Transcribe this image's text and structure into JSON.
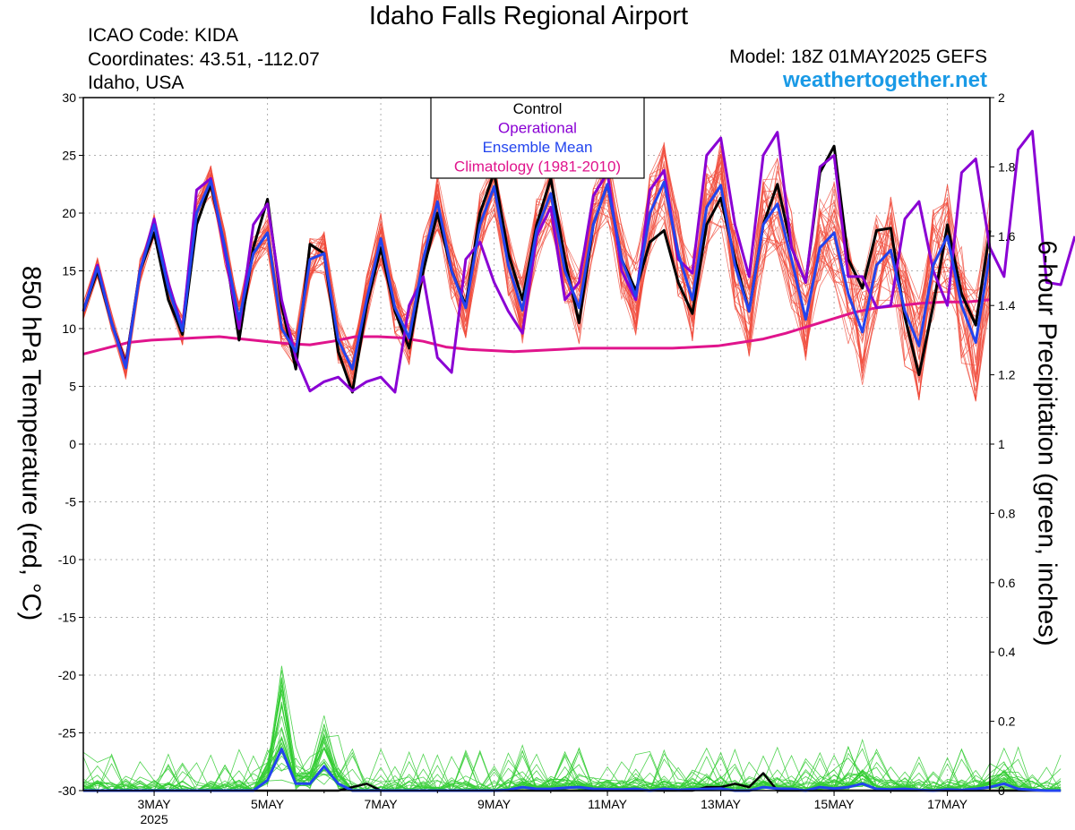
{
  "header": {
    "title": "Idaho Falls Regional Airport",
    "icao": "ICAO Code: KIDA",
    "coords": "Coordinates: 43.51, -112.07",
    "region": "Idaho, USA",
    "model": "Model: 18Z 01MAY2025 GEFS",
    "site": "weathertogether.net"
  },
  "chart_data": {
    "type": "line",
    "ylabel_left": "850 hPa Temperature (red, °C)",
    "ylabel_right": "6-hour Precipitation (green, inches)",
    "ylim_left": [
      -30,
      30
    ],
    "ylim_right": [
      0,
      2
    ],
    "x_range_days": [
      1.75,
      17.75
    ],
    "x_note": "x values are day-of-May 2025 (6-hourly steps)",
    "yticks_left": [
      "30",
      "25",
      "20",
      "15",
      "10",
      "5",
      "0",
      "-5",
      "-10",
      "-15",
      "-20",
      "-25",
      "-30"
    ],
    "yticks_right": [
      "2",
      "1.8",
      "1.6",
      "1.4",
      "1.2",
      "1",
      "0.8",
      "0.6",
      "0.4",
      "0.2",
      "0"
    ],
    "xticks": [
      {
        "day": 3,
        "label": "3MAY"
      },
      {
        "day": 5,
        "label": "5MAY"
      },
      {
        "day": 7,
        "label": "7MAY"
      },
      {
        "day": 9,
        "label": "9MAY"
      },
      {
        "day": 11,
        "label": "11MAY"
      },
      {
        "day": 13,
        "label": "13MAY"
      },
      {
        "day": 15,
        "label": "15MAY"
      },
      {
        "day": 17,
        "label": "17MAY"
      }
    ],
    "year_label": "2025",
    "grid": true,
    "legend": {
      "placement": "top-center",
      "entries": [
        {
          "label": "Control",
          "color": "#000000"
        },
        {
          "label": "Operational",
          "color": "#8a00d4"
        },
        {
          "label": "Ensemble Mean",
          "color": "#2244ee"
        },
        {
          "label": "Climatology (1981-2010)",
          "color": "#e0148c"
        }
      ]
    },
    "colors": {
      "members_temp": "#f04a3a",
      "members_precip": "#33cc33",
      "control": "#000000",
      "operational": "#8a00d4",
      "mean": "#2244ee",
      "climatology": "#e0148c"
    },
    "start_day": 1.75,
    "step_days": 0.25,
    "series": [
      {
        "role": "control",
        "values": [
          11.5,
          15,
          10.5,
          7,
          15,
          18.3,
          12.5,
          9.5,
          19,
          22.5,
          17,
          9,
          17,
          21.2,
          12,
          6.5,
          17.3,
          16.5,
          8,
          4.5,
          12,
          17,
          11.5,
          8.3,
          15,
          20,
          15,
          12,
          20,
          23.5,
          16.5,
          12.5,
          19,
          23,
          16,
          10.5,
          19,
          22.5,
          16,
          13.3,
          17.5,
          18.5,
          14,
          11.3,
          19,
          21.3,
          16,
          11.5,
          19,
          22.5,
          17,
          14,
          23.5,
          25.8,
          16,
          13.5,
          18.5,
          18.7,
          11,
          6,
          12,
          19,
          13,
          10.3,
          18.5
        ]
      },
      {
        "role": "operational",
        "values": [
          11.5,
          15.5,
          10.5,
          6.8,
          15,
          19.5,
          14,
          10,
          22,
          23,
          16.5,
          10,
          19,
          20.8,
          12.5,
          7.5,
          4.6,
          5.4,
          5.8,
          4.6,
          5.4,
          5.8,
          4.5,
          12,
          14.5,
          7.5,
          6.2,
          16,
          17.5,
          14,
          11.5,
          9.6,
          18,
          20.5,
          12.5,
          14,
          21.5,
          23.5,
          15,
          12.5,
          22,
          23.7,
          16,
          14.8,
          25,
          26.5,
          19,
          14.5,
          25,
          27,
          17,
          14,
          24,
          25,
          14.5,
          14.5,
          11.8,
          12,
          19.5,
          21,
          15,
          12,
          23.5,
          24.7,
          17,
          14.5,
          25.5,
          27.1,
          14,
          13.8,
          18
        ]
      },
      {
        "role": "mean",
        "values": [
          11.5,
          15.3,
          10.5,
          6.6,
          15,
          19,
          13.5,
          9.8,
          20,
          22.8,
          17,
          10.8,
          16.5,
          18.3,
          10,
          8,
          16,
          16.5,
          9,
          6.5,
          12.5,
          17.8,
          11.8,
          9.2,
          16,
          21,
          15,
          11.8,
          19,
          22.3,
          15.5,
          11.6,
          18.5,
          21.7,
          15,
          11.8,
          19,
          22.5,
          16,
          12.8,
          20,
          22.7,
          16.5,
          12.5,
          20.5,
          22.4,
          15.5,
          11.5,
          19,
          20.8,
          16,
          10.8,
          17,
          18.3,
          13,
          9.7,
          15.5,
          16.8,
          11.5,
          8.5,
          15.5,
          18,
          12,
          8.8,
          16.5
        ]
      },
      {
        "role": "climatology",
        "values": [
          7.8,
          8.3,
          8.8,
          9.0,
          9.1,
          9.2,
          9.3,
          9.1,
          8.9,
          8.7,
          8.6,
          8.9,
          9.3,
          9.3,
          9.2,
          8.9,
          8.4,
          8.2,
          8.1,
          8.0,
          8.1,
          8.2,
          8.3,
          8.3,
          8.3,
          8.3,
          8.3,
          8.4,
          8.5,
          8.8,
          9.1,
          9.6,
          10.2,
          10.8,
          11.4,
          11.8,
          12.0,
          12.2,
          12.3,
          12.3,
          12.5
        ],
        "step_days": 0.4
      },
      {
        "role": "mean_precip",
        "values": [
          0,
          0,
          0,
          0,
          0,
          0,
          0,
          0,
          0,
          0,
          0,
          0,
          0,
          0.03,
          0.12,
          0.02,
          0.02,
          0.07,
          0.02,
          0,
          0,
          0,
          0,
          0,
          0,
          0,
          0,
          0,
          0,
          0,
          0.002,
          0.01,
          0.005,
          0.005,
          0.008,
          0.01,
          0.005,
          0.004,
          0.003,
          0.005,
          0,
          0.005,
          0.002,
          0.004,
          0.005,
          0.006,
          0,
          0,
          0.01,
          0.006,
          0.005,
          0,
          0.01,
          0.006,
          0.01,
          0.02,
          0.005,
          0.003,
          0.005,
          0.002,
          0,
          0.003,
          0.002,
          0.005,
          0.01,
          0.02,
          0.005,
          0.002,
          0,
          0
        ]
      },
      {
        "role": "control_precip",
        "values": [
          0,
          0,
          0,
          0,
          0,
          0,
          0,
          0,
          0,
          0,
          0,
          0,
          0,
          0,
          0,
          0,
          0,
          0,
          0,
          0.01,
          0.02,
          0,
          0,
          0,
          0,
          0,
          0,
          0,
          0,
          0,
          0,
          0,
          0,
          0,
          0,
          0,
          0,
          0,
          0,
          0,
          0,
          0,
          0,
          0,
          0.01,
          0.01,
          0.02,
          0.01,
          0.05,
          0,
          0,
          0,
          0,
          0,
          0,
          0,
          0,
          0,
          0,
          0,
          0,
          0,
          0,
          0,
          0,
          0,
          0,
          0,
          0,
          0
        ]
      }
    ]
  }
}
